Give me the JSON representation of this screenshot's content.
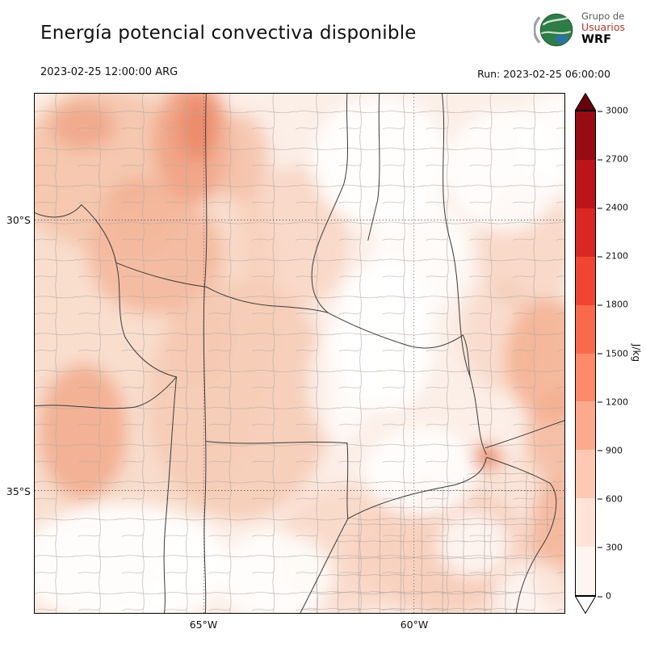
{
  "header": {
    "title": "Energía potencial convectiva disponible",
    "valid_time": "2023-02-25 12:00:00 ARG",
    "run_label": "Run: 2023-02-25 06:00:00",
    "logo": {
      "line1": "Grupo de",
      "line2": "Usuarios",
      "line3": "WRF"
    }
  },
  "axes": {
    "lat_ticks": [
      {
        "label": "30°S"
      },
      {
        "label": "35°S"
      }
    ],
    "lon_ticks": [
      {
        "label": "65°W"
      },
      {
        "label": "60°W"
      }
    ]
  },
  "chart_data": {
    "type": "heatmap",
    "title": "Energía potencial convectiva disponible",
    "variable": "CAPE",
    "units": "J/kg",
    "valid_time": "2023-02-25 12:00:00 ARG",
    "model_run": "Run: 2023-02-25 06:00:00",
    "lat_gridlines": [
      "30°S",
      "35°S"
    ],
    "lon_ticks": [
      "65°W",
      "60°W"
    ],
    "value_range_displayed": [
      0,
      3000
    ],
    "colorbar": {
      "label": "J/kg",
      "ticks": [
        0,
        300,
        600,
        900,
        1200,
        1500,
        1800,
        2100,
        2400,
        2700,
        3000
      ],
      "segment_colors_bottom_to_top": [
        "#fff5f0",
        "#fee3d6",
        "#fdc9b4",
        "#fcaa8e",
        "#fc8a6b",
        "#f9694c",
        "#ef4533",
        "#d92723",
        "#bb151a",
        "#970b13"
      ],
      "over_color": "#67000d",
      "under_color": "#ffffff"
    },
    "field_notes": "CAPE mostly 0-900 J/kg across the mapped region; stronger patches (~900-1500 J/kg) over the northwest and a small maximum near the Río de la Plata; near-zero pockets in the center and southwest."
  }
}
